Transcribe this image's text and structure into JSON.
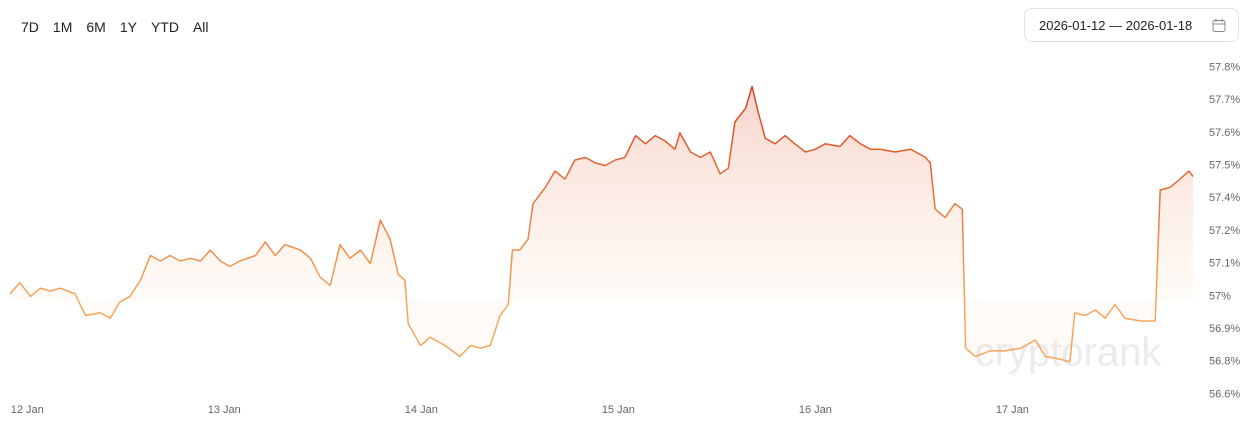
{
  "range_buttons": [
    "7D",
    "1M",
    "6M",
    "1Y",
    "YTD",
    "All"
  ],
  "date_range": "2026-01-12 — 2026-01-18",
  "watermark": "cryptorank",
  "chart_data": {
    "type": "area",
    "x": [
      -2.1,
      -0.9,
      0.4,
      1.6,
      2.8,
      4.0,
      5.8,
      7.1,
      8.9,
      10.1,
      11.3,
      12.5,
      13.8,
      15.0,
      16.2,
      17.4,
      18.6,
      19.9,
      21.1,
      22.3,
      23.5,
      24.7,
      25.9,
      27.8,
      29.0,
      30.2,
      31.4,
      33.3,
      34.5,
      35.7,
      36.9,
      38.1,
      39.3,
      40.6,
      41.8,
      43.0,
      44.2,
      45.2,
      46.0,
      46.4,
      47.9,
      49.1,
      50.9,
      52.7,
      54.0,
      55.2,
      56.4,
      57.6,
      58.6,
      59.1,
      60.0,
      61.0,
      61.6,
      63.1,
      64.3,
      65.5,
      66.7,
      68.0,
      69.2,
      70.4,
      71.6,
      72.8,
      74.1,
      75.3,
      76.5,
      77.7,
      78.9,
      79.5,
      80.8,
      82.0,
      83.2,
      84.4,
      85.4,
      86.2,
      87.5,
      88.3,
      89.0,
      89.9,
      91.1,
      92.3,
      93.5,
      94.8,
      96.0,
      97.2,
      99.0,
      100.2,
      101.5,
      102.7,
      103.9,
      105.7,
      107.6,
      109.4,
      110.0,
      110.6,
      111.8,
      113.0,
      113.9,
      114.3,
      115.5,
      117.3,
      119.1,
      121.0,
      122.8,
      124.0,
      125.8,
      127.0,
      127.6,
      128.9,
      130.1,
      131.3,
      132.5,
      133.7,
      135.6,
      137.4,
      138.0,
      139.2,
      140.4,
      141.5,
      142.0
    ],
    "series": [
      {
        "color": "#f5a65b",
        "color_high": "#d9401e",
        "values": [
          57.01,
          57.05,
          57.0,
          57.03,
          57.02,
          57.03,
          57.01,
          56.93,
          56.94,
          56.92,
          56.98,
          57.0,
          57.06,
          57.15,
          57.13,
          57.15,
          57.13,
          57.14,
          57.13,
          57.17,
          57.13,
          57.11,
          57.13,
          57.15,
          57.2,
          57.15,
          57.19,
          57.17,
          57.14,
          57.07,
          57.04,
          57.19,
          57.14,
          57.17,
          57.12,
          57.28,
          57.21,
          57.08,
          57.06,
          56.9,
          56.82,
          56.85,
          56.82,
          56.78,
          56.82,
          56.81,
          56.82,
          56.93,
          56.97,
          57.17,
          57.17,
          57.21,
          57.34,
          57.4,
          57.46,
          57.43,
          57.5,
          57.51,
          57.49,
          57.48,
          57.5,
          57.51,
          57.59,
          57.56,
          57.59,
          57.57,
          57.54,
          57.6,
          57.53,
          57.51,
          57.53,
          57.45,
          57.47,
          57.64,
          57.69,
          57.77,
          57.68,
          57.58,
          57.56,
          57.59,
          57.56,
          57.53,
          57.54,
          57.56,
          57.55,
          57.59,
          57.56,
          57.54,
          57.54,
          57.53,
          57.54,
          57.51,
          57.49,
          57.32,
          57.29,
          57.34,
          57.32,
          56.81,
          56.78,
          56.8,
          56.8,
          56.81,
          56.84,
          56.78,
          56.77,
          56.76,
          56.94,
          56.93,
          56.95,
          56.92,
          56.97,
          56.92,
          56.91,
          56.91,
          57.39,
          57.4,
          57.43,
          57.46,
          57.44
        ]
      }
    ],
    "xlim": [
      -2.1,
      142.0
    ],
    "xticks": [
      {
        "value": 0,
        "label": "12 Jan"
      },
      {
        "value": 24,
        "label": "13 Jan"
      },
      {
        "value": 48,
        "label": "14 Jan"
      },
      {
        "value": 72,
        "label": "15 Jan"
      },
      {
        "value": 96,
        "label": "16 Jan"
      },
      {
        "value": 120,
        "label": "17 Jan"
      }
    ],
    "ylim": [
      56.62,
      57.86
    ],
    "yticks": [
      {
        "value": 56.64,
        "label": "56.6%"
      },
      {
        "value": 56.76,
        "label": "56.8%"
      },
      {
        "value": 56.88,
        "label": "56.9%"
      },
      {
        "value": 57.0,
        "label": "57%"
      },
      {
        "value": 57.12,
        "label": "57.1%"
      },
      {
        "value": 57.24,
        "label": "57.2%"
      },
      {
        "value": 57.36,
        "label": "57.4%"
      },
      {
        "value": 57.48,
        "label": "57.5%"
      },
      {
        "value": 57.6,
        "label": "57.6%"
      },
      {
        "value": 57.72,
        "label": "57.7%"
      },
      {
        "value": 57.84,
        "label": "57.8%"
      }
    ],
    "grid": false
  }
}
